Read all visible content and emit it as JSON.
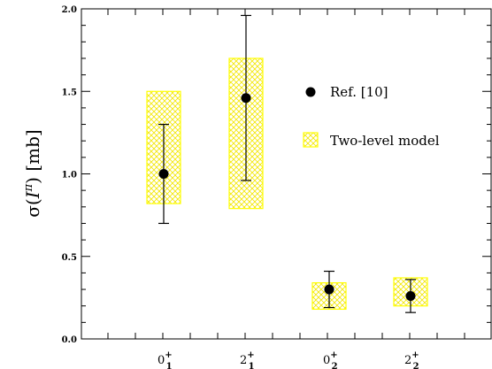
{
  "chart_data": {
    "type": "scatter",
    "categories": [
      {
        "base": "0",
        "sup": "+",
        "sub": "1"
      },
      {
        "base": "2",
        "sup": "+",
        "sub": "1"
      },
      {
        "base": "0",
        "sup": "+",
        "sub": "2"
      },
      {
        "base": "2",
        "sup": "+",
        "sub": "2"
      }
    ],
    "ylabel": {
      "prefix": "σ(",
      "sym": "I",
      "sup": "π",
      "suffix": ")  [mb]"
    },
    "ylim": [
      0.0,
      2.0
    ],
    "yticks": [
      "0.0",
      "0.5",
      "1.0",
      "1.5",
      "2.0"
    ],
    "series": [
      {
        "name": "Ref. [10]",
        "kind": "points-with-errorbars",
        "values": [
          1.0,
          1.46,
          0.3,
          0.26
        ],
        "err_low": [
          0.7,
          0.96,
          0.19,
          0.16
        ],
        "err_high": [
          1.3,
          1.96,
          0.41,
          0.36
        ]
      },
      {
        "name": "Two-level model",
        "kind": "bands",
        "low": [
          0.82,
          0.79,
          0.18,
          0.2
        ],
        "high": [
          1.5,
          1.7,
          0.34,
          0.37
        ]
      }
    ],
    "legend": "upper-right",
    "colors": {
      "band": "#ffff00",
      "points": "#000000"
    }
  }
}
